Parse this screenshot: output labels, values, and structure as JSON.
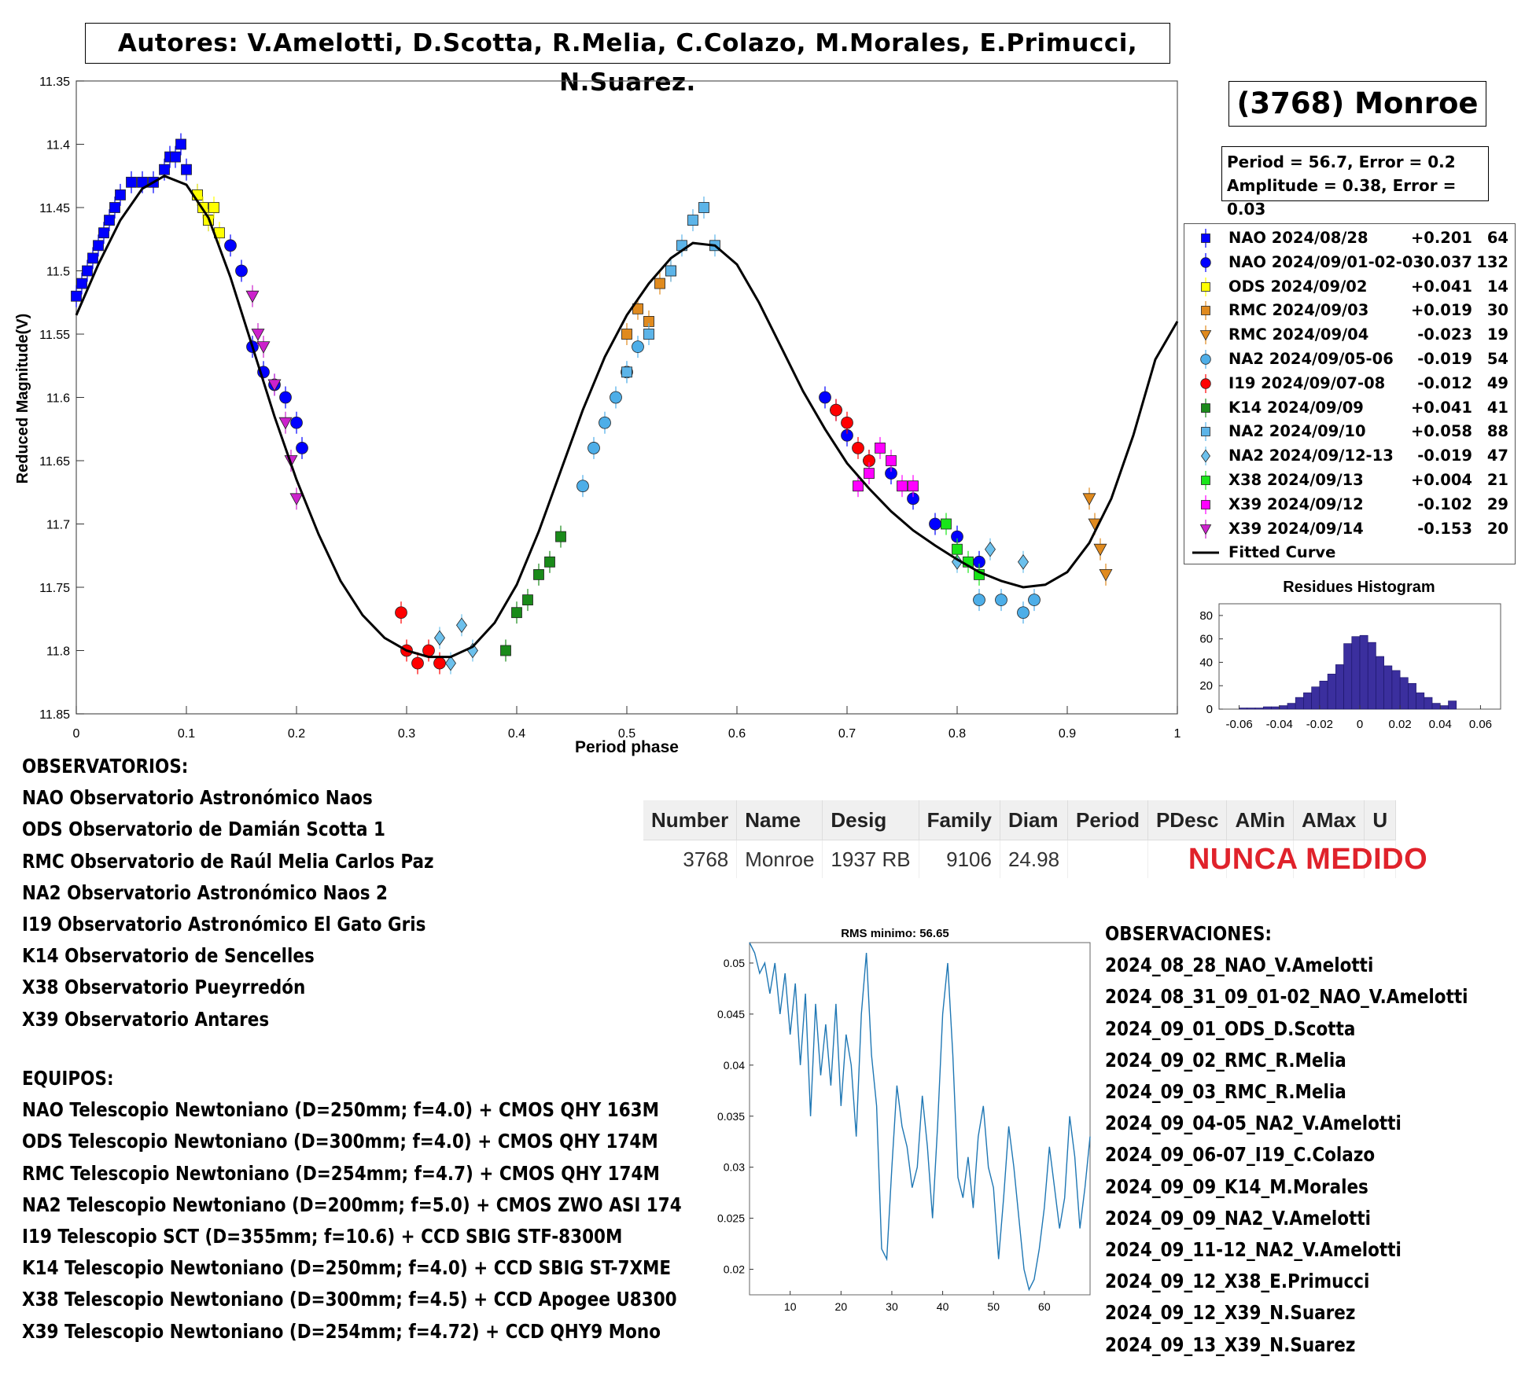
{
  "authors": "Autores: V.Amelotti, D.Scotta, R.Melia, C.Colazo, M.Morales, E.Primucci, N.Suarez.",
  "object_title": "(3768) Monroe",
  "stats": {
    "line1": "Period =  56.7, Error = 0.2",
    "line2": "Amplitude = 0.38, Error = 0.03"
  },
  "legend": [
    {
      "label": "NAO 2024/08/28",
      "offset": "+0.201",
      "count": "64",
      "color": "#0000ff",
      "marker": "square"
    },
    {
      "label": "NAO 2024/09/01-02-03",
      "offset": "-0.037",
      "count": "132",
      "color": "#0000ff",
      "marker": "circle"
    },
    {
      "label": "ODS 2024/09/02",
      "offset": "+0.041",
      "count": "14",
      "color": "#ffff00",
      "marker": "square"
    },
    {
      "label": "RMC 2024/09/03",
      "offset": "+0.019",
      "count": "30",
      "color": "#e08a1e",
      "marker": "square"
    },
    {
      "label": "RMC 2024/09/04",
      "offset": "-0.023",
      "count": "19",
      "color": "#e08a1e",
      "marker": "triangle-down"
    },
    {
      "label": "NA2 2024/09/05-06",
      "offset": "-0.019",
      "count": "54",
      "color": "#4daee8",
      "marker": "circle"
    },
    {
      "label": "I19 2024/09/07-08",
      "offset": "-0.012",
      "count": "49",
      "color": "#ff0000",
      "marker": "circle"
    },
    {
      "label": "K14 2024/09/09",
      "offset": "+0.041",
      "count": "41",
      "color": "#1a8a1a",
      "marker": "square"
    },
    {
      "label": "NA2 2024/09/10",
      "offset": "+0.058",
      "count": "88",
      "color": "#5cb4e8",
      "marker": "square"
    },
    {
      "label": "NA2 2024/09/12-13",
      "offset": "-0.019",
      "count": "47",
      "color": "#6cc0ec",
      "marker": "diamond"
    },
    {
      "label": "X38 2024/09/13",
      "offset": "+0.004",
      "count": "21",
      "color": "#19e619",
      "marker": "square"
    },
    {
      "label": "X39 2024/09/12",
      "offset": "-0.102",
      "count": "29",
      "color": "#ff00ff",
      "marker": "square"
    },
    {
      "label": "X39 2024/09/14",
      "offset": "-0.153",
      "count": "20",
      "color": "#cc22cc",
      "marker": "triangle-down"
    },
    {
      "label": "Fitted Curve",
      "offset": "",
      "count": "",
      "color": "#000000",
      "marker": "line"
    }
  ],
  "chart_data": [
    {
      "type": "scatter",
      "title": "",
      "xlabel": "Period phase",
      "ylabel": "Reduced Magnitude(V)",
      "xlim": [
        0,
        1
      ],
      "ylim": [
        11.35,
        11.85
      ],
      "y_reversed": true,
      "xticks": [
        "0",
        "0.1",
        "0.2",
        "0.3",
        "0.4",
        "0.5",
        "0.6",
        "0.7",
        "0.8",
        "0.9",
        "1"
      ],
      "yticks": [
        "11.35",
        "11.4",
        "11.45",
        "11.5",
        "11.55",
        "11.6",
        "11.65",
        "11.7",
        "11.75",
        "11.8",
        "11.85"
      ],
      "fitted_curve": {
        "x": [
          0,
          0.02,
          0.04,
          0.06,
          0.08,
          0.1,
          0.12,
          0.14,
          0.16,
          0.18,
          0.2,
          0.22,
          0.24,
          0.26,
          0.28,
          0.3,
          0.32,
          0.34,
          0.36,
          0.38,
          0.4,
          0.42,
          0.44,
          0.46,
          0.48,
          0.5,
          0.52,
          0.54,
          0.56,
          0.58,
          0.6,
          0.62,
          0.64,
          0.66,
          0.68,
          0.7,
          0.72,
          0.74,
          0.76,
          0.78,
          0.8,
          0.82,
          0.84,
          0.86,
          0.88,
          0.9,
          0.92,
          0.94,
          0.96,
          0.98,
          1.0
        ],
        "y": [
          11.535,
          11.495,
          11.46,
          11.435,
          11.425,
          11.432,
          11.458,
          11.505,
          11.56,
          11.615,
          11.665,
          11.708,
          11.745,
          11.772,
          11.79,
          11.8,
          11.805,
          11.805,
          11.797,
          11.778,
          11.748,
          11.706,
          11.658,
          11.61,
          11.568,
          11.535,
          11.51,
          11.49,
          11.478,
          11.48,
          11.495,
          11.525,
          11.56,
          11.595,
          11.625,
          11.652,
          11.672,
          11.69,
          11.705,
          11.717,
          11.728,
          11.738,
          11.745,
          11.75,
          11.748,
          11.738,
          11.715,
          11.68,
          11.63,
          11.57,
          11.54
        ]
      },
      "series": [
        {
          "name": "NAO 2024/08/28",
          "x": [
            0.0,
            0.005,
            0.01,
            0.015,
            0.02,
            0.025,
            0.03,
            0.035,
            0.04,
            0.05,
            0.06,
            0.07,
            0.08,
            0.085,
            0.09,
            0.095,
            0.1,
            0.11,
            0.12
          ],
          "y": [
            11.52,
            11.51,
            11.5,
            11.49,
            11.48,
            11.47,
            11.46,
            11.45,
            11.44,
            11.43,
            11.43,
            11.43,
            11.42,
            11.41,
            11.41,
            11.4,
            11.42,
            11.44,
            11.46
          ]
        },
        {
          "name": "NAO 2024/09/01-02-03",
          "x": [
            0.14,
            0.15,
            0.16,
            0.17,
            0.18,
            0.19,
            0.2,
            0.205,
            0.68,
            0.69,
            0.7,
            0.72,
            0.74,
            0.76,
            0.78,
            0.8,
            0.82
          ],
          "y": [
            11.48,
            11.5,
            11.56,
            11.58,
            11.59,
            11.6,
            11.62,
            11.64,
            11.6,
            11.61,
            11.63,
            11.65,
            11.66,
            11.68,
            11.7,
            11.71,
            11.73
          ]
        },
        {
          "name": "ODS 2024/09/02",
          "x": [
            0.11,
            0.115,
            0.12,
            0.125,
            0.13
          ],
          "y": [
            11.44,
            11.45,
            11.46,
            11.45,
            11.47
          ]
        },
        {
          "name": "RMC 2024/09/03",
          "x": [
            0.5,
            0.51,
            0.52,
            0.53,
            0.54
          ],
          "y": [
            11.55,
            11.53,
            11.54,
            11.51,
            11.5
          ]
        },
        {
          "name": "RMC 2024/09/04",
          "x": [
            0.92,
            0.925,
            0.93,
            0.935
          ],
          "y": [
            11.68,
            11.7,
            11.72,
            11.74
          ]
        },
        {
          "name": "NA2 2024/09/05-06",
          "x": [
            0.46,
            0.47,
            0.48,
            0.49,
            0.5,
            0.51,
            0.82,
            0.84,
            0.86,
            0.87
          ],
          "y": [
            11.67,
            11.64,
            11.62,
            11.6,
            11.58,
            11.56,
            11.76,
            11.76,
            11.77,
            11.76
          ]
        },
        {
          "name": "I19 2024/09/07-08",
          "x": [
            0.295,
            0.3,
            0.31,
            0.32,
            0.33,
            0.69,
            0.7,
            0.71,
            0.72
          ],
          "y": [
            11.77,
            11.8,
            11.81,
            11.8,
            11.81,
            11.61,
            11.62,
            11.64,
            11.65
          ]
        },
        {
          "name": "K14 2024/09/09",
          "x": [
            0.39,
            0.4,
            0.41,
            0.42,
            0.43,
            0.44
          ],
          "y": [
            11.8,
            11.77,
            11.76,
            11.74,
            11.73,
            11.71
          ]
        },
        {
          "name": "NA2 2024/09/10",
          "x": [
            0.5,
            0.52,
            0.54,
            0.55,
            0.56,
            0.57,
            0.58
          ],
          "y": [
            11.58,
            11.55,
            11.5,
            11.48,
            11.46,
            11.45,
            11.48
          ]
        },
        {
          "name": "NA2 2024/09/12-13",
          "x": [
            0.33,
            0.34,
            0.35,
            0.36,
            0.8,
            0.83,
            0.86
          ],
          "y": [
            11.79,
            11.81,
            11.78,
            11.8,
            11.73,
            11.72,
            11.73
          ]
        },
        {
          "name": "X38 2024/09/13",
          "x": [
            0.79,
            0.8,
            0.81,
            0.82
          ],
          "y": [
            11.7,
            11.72,
            11.73,
            11.74
          ]
        },
        {
          "name": "X39 2024/09/12",
          "x": [
            0.71,
            0.72,
            0.73,
            0.74,
            0.75,
            0.76
          ],
          "y": [
            11.67,
            11.66,
            11.64,
            11.65,
            11.67,
            11.67
          ]
        },
        {
          "name": "X39 2024/09/14",
          "x": [
            0.16,
            0.165,
            0.17,
            0.18,
            0.19,
            0.195,
            0.2
          ],
          "y": [
            11.52,
            11.55,
            11.56,
            11.59,
            11.62,
            11.65,
            11.68
          ]
        }
      ]
    },
    {
      "type": "bar",
      "title": "Residues Histogram",
      "xlim": [
        -0.07,
        0.07
      ],
      "ylim": [
        0,
        90
      ],
      "xticks": [
        "-0.06",
        "-0.04",
        "-0.02",
        "0",
        "0.02",
        "0.04",
        "0.06"
      ],
      "yticks": [
        "0",
        "20",
        "40",
        "60",
        "80"
      ],
      "bin_width": 0.004,
      "bin_centers": [
        -0.058,
        -0.054,
        -0.05,
        -0.046,
        -0.042,
        -0.038,
        -0.034,
        -0.03,
        -0.026,
        -0.022,
        -0.018,
        -0.014,
        -0.01,
        -0.006,
        -0.002,
        0.002,
        0.006,
        0.01,
        0.014,
        0.018,
        0.022,
        0.026,
        0.03,
        0.034,
        0.038,
        0.042,
        0.046
      ],
      "values": [
        1,
        1,
        1,
        2,
        2,
        3,
        5,
        10,
        14,
        19,
        24,
        30,
        38,
        56,
        62,
        63,
        57,
        45,
        37,
        33,
        27,
        22,
        14,
        10,
        5,
        3,
        7
      ],
      "bar_color": "#3b2f9e"
    },
    {
      "type": "line",
      "title": "RMS minimo: 56.65",
      "xlim": [
        2,
        69
      ],
      "ylim": [
        0.0175,
        0.052
      ],
      "xticks": [
        "10",
        "20",
        "30",
        "40",
        "50",
        "60"
      ],
      "yticks": [
        "0.02",
        "0.025",
        "0.03",
        "0.035",
        "0.04",
        "0.045",
        "0.05"
      ],
      "x": [
        2,
        3,
        4,
        5,
        6,
        7,
        8,
        9,
        10,
        11,
        12,
        13,
        14,
        15,
        16,
        17,
        18,
        19,
        20,
        21,
        22,
        23,
        24,
        25,
        26,
        27,
        28,
        29,
        30,
        31,
        32,
        33,
        34,
        35,
        36,
        37,
        38,
        39,
        40,
        41,
        42,
        43,
        44,
        45,
        46,
        47,
        48,
        49,
        50,
        51,
        52,
        53,
        54,
        55,
        56,
        57,
        58,
        59,
        60,
        61,
        62,
        63,
        64,
        65,
        66,
        67,
        68,
        69
      ],
      "y": [
        0.052,
        0.051,
        0.049,
        0.05,
        0.047,
        0.05,
        0.045,
        0.049,
        0.043,
        0.048,
        0.04,
        0.047,
        0.035,
        0.046,
        0.039,
        0.044,
        0.038,
        0.046,
        0.036,
        0.043,
        0.04,
        0.033,
        0.045,
        0.051,
        0.041,
        0.036,
        0.022,
        0.021,
        0.03,
        0.038,
        0.034,
        0.032,
        0.028,
        0.03,
        0.037,
        0.032,
        0.025,
        0.034,
        0.045,
        0.05,
        0.041,
        0.029,
        0.027,
        0.031,
        0.026,
        0.033,
        0.036,
        0.03,
        0.028,
        0.021,
        0.027,
        0.034,
        0.03,
        0.025,
        0.02,
        0.018,
        0.019,
        0.022,
        0.026,
        0.032,
        0.028,
        0.024,
        0.027,
        0.035,
        0.031,
        0.024,
        0.028,
        0.033
      ]
    }
  ],
  "observatorios": {
    "heading": "OBSERVATORIOS:",
    "items": [
      "NAO Observatorio Astronómico Naos",
      "ODS Observatorio de Damián Scotta 1",
      "RMC Observatorio de Raúl Melia Carlos Paz",
      "NA2 Observatorio Astronómico Naos 2",
      "I19 Observatorio Astronómico El Gato Gris",
      "K14 Observatorio de Sencelles",
      "X38 Observatorio Pueyrredón",
      "X39 Observatorio Antares"
    ]
  },
  "equipos": {
    "heading": "EQUIPOS:",
    "items": [
      "NAO Telescopio Newtoniano (D=250mm; f=4.0) + CMOS QHY 163M",
      "ODS Telescopio Newtoniano (D=300mm; f=4.0) + CMOS QHY 174M",
      "RMC Telescopio Newtoniano (D=254mm; f=4.7) + CMOS QHY 174M",
      "NA2 Telescopio Newtoniano (D=200mm; f=5.0) + CMOS ZWO ASI 174",
      "I19 Telescopio SCT (D=355mm; f=10.6) + CCD SBIG STF-8300M",
      "K14 Telescopio Newtoniano (D=250mm; f=4.0) + CCD SBIG ST-7XME",
      "X38 Telescopio Newtoniano (D=300mm; f=4.5) + CCD Apogee U8300",
      "X39 Telescopio Newtoniano (D=254mm; f=4.72) + CCD QHY9 Mono"
    ]
  },
  "observaciones": {
    "heading": "OBSERVACIONES:",
    "items": [
      "2024_08_28_NAO_V.Amelotti",
      "2024_08_31_09_01-02_NAO_V.Amelotti",
      "2024_09_01_ODS_D.Scotta",
      "2024_09_02_RMC_R.Melia",
      "2024_09_03_RMC_R.Melia",
      "2024_09_04-05_NA2_V.Amelotti",
      "2024_09_06-07_I19_C.Colazo",
      "2024_09_09_K14_M.Morales",
      "2024_09_09_NA2_V.Amelotti",
      "2024_09_11-12_NA2_V.Amelotti",
      "2024_09_12_X38_E.Primucci",
      "2024_09_12_X39_N.Suarez",
      "2024_09_13_X39_N.Suarez"
    ]
  },
  "mpc_table": {
    "headers": [
      "Number",
      "Name",
      "Desig",
      "Family",
      "Diam",
      "Period",
      "PDesc",
      "AMin",
      "AMax",
      "U"
    ],
    "row": [
      "3768",
      "Monroe",
      "1937 RB",
      "9106",
      "24.98",
      "",
      "",
      "",
      "",
      ""
    ],
    "status": "NUNCA MEDIDO"
  }
}
